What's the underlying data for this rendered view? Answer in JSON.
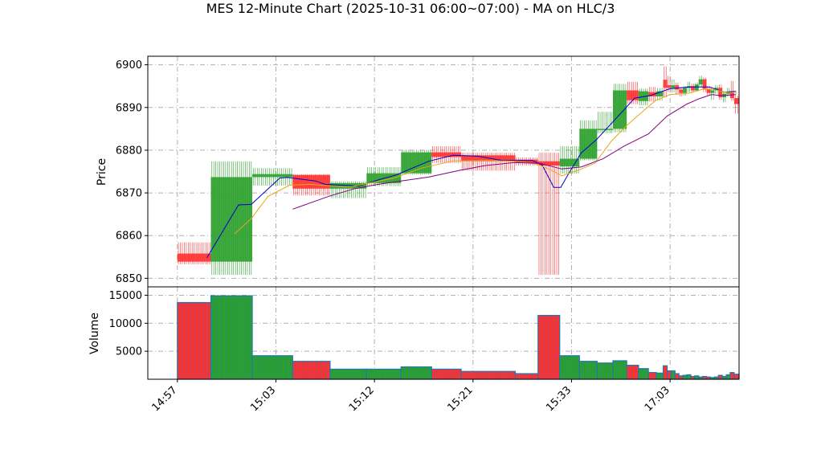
{
  "chart_data": {
    "type": "candlestick",
    "title": "MES 12-Minute Chart (2025-10-31 06:00~07:00) - MA on HLC/3",
    "price_panel": {
      "ylabel": "Price",
      "ylim": [
        6848,
        6902
      ],
      "yticks": [
        6850,
        6860,
        6870,
        6880,
        6890,
        6900
      ],
      "grid": true
    },
    "volume_panel": {
      "ylabel": "Volume",
      "ylim": [
        0,
        16500
      ],
      "yticks": [
        5000,
        10000,
        15000
      ],
      "grid": true
    },
    "x_range": [
      -3,
      57
    ],
    "x_ticks": [
      {
        "pos": 0,
        "label": "14:57"
      },
      {
        "pos": 10,
        "label": "15:03"
      },
      {
        "pos": 20,
        "label": "15:12"
      },
      {
        "pos": 30,
        "label": "15:21"
      },
      {
        "pos": 40,
        "label": "15:33"
      },
      {
        "pos": 50,
        "label": "17:03"
      }
    ],
    "colors": {
      "up": "#2ca02c",
      "down": "#ff3030",
      "ma_fast": "#0000cc",
      "ma_mid": "#e6a817",
      "ma_slow": "#800080",
      "grid": "#b0b0b0"
    },
    "bars": [
      {
        "start": 0,
        "end": 3.4,
        "open": 6855.8,
        "high": 6858.4,
        "low": 6853.3,
        "close": 6853.9,
        "volume": 13700
      },
      {
        "start": 3.4,
        "end": 7.6,
        "open": 6853.9,
        "high": 6877.4,
        "low": 6850.8,
        "close": 6873.7,
        "volume": 14900
      },
      {
        "start": 7.6,
        "end": 11.7,
        "open": 6873.7,
        "high": 6875.8,
        "low": 6871.7,
        "close": 6874.4,
        "volume": 4200
      },
      {
        "start": 11.7,
        "end": 15.5,
        "open": 6874.2,
        "high": 6874.4,
        "low": 6869.4,
        "close": 6871.0,
        "volume": 3200
      },
      {
        "start": 15.5,
        "end": 19.2,
        "open": 6871.0,
        "high": 6872.7,
        "low": 6868.8,
        "close": 6872.3,
        "volume": 1800
      },
      {
        "start": 19.2,
        "end": 22.7,
        "open": 6872.3,
        "high": 6876.0,
        "low": 6871.6,
        "close": 6874.6,
        "volume": 1800
      },
      {
        "start": 22.7,
        "end": 25.8,
        "open": 6874.6,
        "high": 6880.0,
        "low": 6874.3,
        "close": 6879.5,
        "volume": 2200
      },
      {
        "start": 25.8,
        "end": 28.8,
        "open": 6879.5,
        "high": 6880.9,
        "low": 6877.0,
        "close": 6878.4,
        "volume": 1800
      },
      {
        "start": 28.8,
        "end": 34.3,
        "open": 6878.8,
        "high": 6879.4,
        "low": 6875.2,
        "close": 6877.4,
        "volume": 1400
      },
      {
        "start": 34.3,
        "end": 36.6,
        "open": 6877.8,
        "high": 6878.3,
        "low": 6876.4,
        "close": 6877.0,
        "volume": 1000
      },
      {
        "start": 36.6,
        "end": 38.8,
        "open": 6877.4,
        "high": 6879.4,
        "low": 6850.8,
        "close": 6876.4,
        "volume": 11400
      },
      {
        "start": 38.8,
        "end": 40.8,
        "open": 6876.2,
        "high": 6880.9,
        "low": 6874.5,
        "close": 6878.0,
        "volume": 4200
      },
      {
        "start": 40.8,
        "end": 42.6,
        "open": 6878.0,
        "high": 6887.0,
        "low": 6877.6,
        "close": 6885.0,
        "volume": 3200
      },
      {
        "start": 42.6,
        "end": 44.2,
        "open": 6884.8,
        "high": 6889.0,
        "low": 6884.0,
        "close": 6885.0,
        "volume": 2900
      },
      {
        "start": 44.2,
        "end": 45.6,
        "open": 6885.0,
        "high": 6895.5,
        "low": 6884.2,
        "close": 6894.0,
        "volume": 3300
      },
      {
        "start": 45.6,
        "end": 46.8,
        "open": 6894.0,
        "high": 6896.0,
        "low": 6890.8,
        "close": 6891.7,
        "volume": 2500
      },
      {
        "start": 46.8,
        "end": 47.8,
        "open": 6891.5,
        "high": 6894.4,
        "low": 6890.5,
        "close": 6893.8,
        "volume": 1900
      },
      {
        "start": 47.8,
        "end": 48.6,
        "open": 6893.6,
        "high": 6894.8,
        "low": 6891.4,
        "close": 6892.6,
        "volume": 1200
      },
      {
        "start": 48.6,
        "end": 49.3,
        "open": 6892.6,
        "high": 6894.6,
        "low": 6891.6,
        "close": 6893.8,
        "volume": 1100
      },
      {
        "start": 49.3,
        "end": 49.7,
        "open": 6896.5,
        "high": 6899.6,
        "low": 6892.4,
        "close": 6894.6,
        "volume": 2400
      },
      {
        "start": 49.7,
        "end": 50.1,
        "open": 6895.2,
        "high": 6897.4,
        "low": 6893.6,
        "close": 6894.6,
        "volume": 1500
      },
      {
        "start": 50.1,
        "end": 50.5,
        "open": 6894.6,
        "high": 6896.6,
        "low": 6893.5,
        "close": 6895.2,
        "volume": 1500
      },
      {
        "start": 50.5,
        "end": 50.9,
        "open": 6895.2,
        "high": 6895.8,
        "low": 6893.0,
        "close": 6894.2,
        "volume": 1000
      },
      {
        "start": 50.9,
        "end": 51.3,
        "open": 6894.2,
        "high": 6894.8,
        "low": 6892.6,
        "close": 6893.4,
        "volume": 600
      },
      {
        "start": 51.3,
        "end": 51.7,
        "open": 6893.4,
        "high": 6895.0,
        "low": 6892.8,
        "close": 6894.6,
        "volume": 700
      },
      {
        "start": 51.7,
        "end": 52.1,
        "open": 6894.6,
        "high": 6896.0,
        "low": 6893.6,
        "close": 6895.0,
        "volume": 800
      },
      {
        "start": 52.1,
        "end": 52.5,
        "open": 6895.0,
        "high": 6895.6,
        "low": 6893.6,
        "close": 6894.0,
        "volume": 500
      },
      {
        "start": 52.5,
        "end": 52.9,
        "open": 6894.0,
        "high": 6895.8,
        "low": 6893.8,
        "close": 6895.4,
        "volume": 600
      },
      {
        "start": 52.9,
        "end": 53.3,
        "open": 6895.4,
        "high": 6897.4,
        "low": 6894.8,
        "close": 6896.6,
        "volume": 400
      },
      {
        "start": 53.3,
        "end": 53.7,
        "open": 6896.6,
        "high": 6897.0,
        "low": 6893.6,
        "close": 6894.2,
        "volume": 500
      },
      {
        "start": 53.7,
        "end": 54.1,
        "open": 6894.2,
        "high": 6895.0,
        "low": 6892.8,
        "close": 6893.4,
        "volume": 400
      },
      {
        "start": 54.1,
        "end": 54.5,
        "open": 6893.4,
        "high": 6894.6,
        "low": 6891.8,
        "close": 6894.0,
        "volume": 300
      },
      {
        "start": 54.5,
        "end": 54.9,
        "open": 6894.0,
        "high": 6895.2,
        "low": 6893.2,
        "close": 6894.6,
        "volume": 400
      },
      {
        "start": 54.9,
        "end": 55.3,
        "open": 6894.6,
        "high": 6895.4,
        "low": 6891.8,
        "close": 6892.4,
        "volume": 700
      },
      {
        "start": 55.3,
        "end": 55.7,
        "open": 6892.4,
        "high": 6893.8,
        "low": 6891.2,
        "close": 6893.2,
        "volume": 500
      },
      {
        "start": 55.7,
        "end": 56.1,
        "open": 6893.2,
        "high": 6894.6,
        "low": 6892.6,
        "close": 6893.6,
        "volume": 800
      },
      {
        "start": 56.1,
        "end": 56.5,
        "open": 6893.6,
        "high": 6896.2,
        "low": 6891.6,
        "close": 6892.2,
        "volume": 1200
      },
      {
        "start": 56.5,
        "end": 57.0,
        "open": 6892.2,
        "high": 6892.8,
        "low": 6888.6,
        "close": 6890.8,
        "volume": 900
      }
    ],
    "ma_series": [
      {
        "key": "ma_fast",
        "points": [
          [
            3.0,
            6854.8
          ],
          [
            6.2,
            6867.2
          ],
          [
            7.5,
            6867.3
          ],
          [
            10.4,
            6873.5
          ],
          [
            11.2,
            6873.6
          ],
          [
            14.0,
            6872.8
          ],
          [
            15.0,
            6872.0
          ],
          [
            18.4,
            6871.6
          ],
          [
            20.6,
            6873.2
          ],
          [
            22.2,
            6874.2
          ],
          [
            25.5,
            6877.4
          ],
          [
            28.0,
            6878.8
          ],
          [
            30.5,
            6878.6
          ],
          [
            33.0,
            6877.6
          ],
          [
            36.0,
            6877.6
          ],
          [
            37.0,
            6876.6
          ],
          [
            38.2,
            6871.3
          ],
          [
            38.9,
            6871.3
          ],
          [
            39.7,
            6874.5
          ],
          [
            41.0,
            6879.4
          ],
          [
            42.5,
            6882.4
          ],
          [
            43.7,
            6885.4
          ],
          [
            45.3,
            6889.4
          ],
          [
            46.4,
            6892.2
          ],
          [
            48.0,
            6892.8
          ],
          [
            50.0,
            6894.4
          ],
          [
            52.0,
            6894.8
          ],
          [
            54.0,
            6894.8
          ],
          [
            55.5,
            6893.6
          ],
          [
            56.7,
            6893.8
          ]
        ]
      },
      {
        "key": "ma_mid",
        "points": [
          [
            5.8,
            6860.4
          ],
          [
            7.5,
            6864.0
          ],
          [
            9.2,
            6869.2
          ],
          [
            11.4,
            6871.8
          ],
          [
            13.5,
            6872.0
          ],
          [
            15.6,
            6871.6
          ],
          [
            17.6,
            6871.4
          ],
          [
            19.5,
            6872.3
          ],
          [
            22.0,
            6873.5
          ],
          [
            24.8,
            6875.8
          ],
          [
            28.0,
            6877.5
          ],
          [
            31.5,
            6877.6
          ],
          [
            34.5,
            6877.4
          ],
          [
            36.4,
            6876.8
          ],
          [
            37.8,
            6875.5
          ],
          [
            39.0,
            6874.0
          ],
          [
            40.8,
            6875.4
          ],
          [
            42.4,
            6877.0
          ],
          [
            44.0,
            6882.0
          ],
          [
            45.6,
            6885.8
          ],
          [
            46.8,
            6888.2
          ],
          [
            48.5,
            6891.6
          ],
          [
            50.0,
            6893.0
          ],
          [
            52.0,
            6893.4
          ],
          [
            53.5,
            6894.4
          ],
          [
            54.5,
            6894.2
          ],
          [
            55.6,
            6893.6
          ],
          [
            56.8,
            6893.4
          ]
        ]
      },
      {
        "key": "ma_slow",
        "points": [
          [
            11.7,
            6866.2
          ],
          [
            15.5,
            6869.3
          ],
          [
            18.0,
            6871.0
          ],
          [
            20.4,
            6872.0
          ],
          [
            23.0,
            6872.9
          ],
          [
            25.5,
            6873.7
          ],
          [
            28.5,
            6875.2
          ],
          [
            31.2,
            6876.4
          ],
          [
            34.2,
            6877.1
          ],
          [
            36.8,
            6876.9
          ],
          [
            39.0,
            6875.6
          ],
          [
            41.0,
            6876.1
          ],
          [
            43.2,
            6878.0
          ],
          [
            45.3,
            6880.9
          ],
          [
            47.8,
            6883.8
          ],
          [
            49.7,
            6888.0
          ],
          [
            51.7,
            6890.8
          ],
          [
            53.0,
            6892.1
          ],
          [
            54.2,
            6893.0
          ],
          [
            55.3,
            6892.8
          ],
          [
            56.7,
            6893.0
          ]
        ]
      }
    ]
  }
}
